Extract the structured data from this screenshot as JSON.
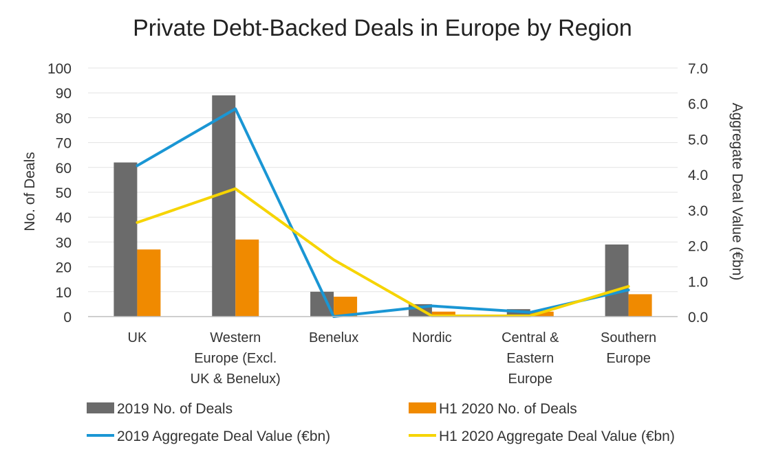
{
  "chart_data": {
    "type": "bar",
    "title": "Private Debt-Backed Deals in Europe by Region",
    "ylabel": "No. of Deals",
    "y2label": "Aggregate Deal Value (€bn)",
    "ylim": [
      0,
      100
    ],
    "y2lim": [
      0,
      7
    ],
    "yticks": [
      "0",
      "10",
      "20",
      "30",
      "40",
      "50",
      "60",
      "70",
      "80",
      "90",
      "100"
    ],
    "y2ticks": [
      "0.0",
      "1.0",
      "2.0",
      "3.0",
      "4.0",
      "5.0",
      "6.0",
      "7.0"
    ],
    "grid": true,
    "legend_position": "bottom",
    "categories": [
      [
        "UK"
      ],
      [
        "Western",
        "Europe (Excl.",
        "UK & Benelux)"
      ],
      [
        "Benelux"
      ],
      [
        "Nordic"
      ],
      [
        "Central &",
        "Eastern",
        "Europe"
      ],
      [
        "Southern",
        "Europe"
      ]
    ],
    "series": [
      {
        "name": "2019 No. of Deals",
        "kind": "bar",
        "axis": "left",
        "color": "#6b6b6b",
        "values": [
          62,
          89,
          10,
          5,
          3,
          29
        ]
      },
      {
        "name": "H1 2020 No. of Deals",
        "kind": "bar",
        "axis": "left",
        "color": "#f08a00",
        "values": [
          27,
          31,
          8,
          2,
          2,
          9
        ]
      },
      {
        "name": "2019 Aggregate Deal Value (€bn)",
        "kind": "line",
        "axis": "right",
        "color": "#1a96d4",
        "values": [
          4.25,
          5.85,
          0.0,
          0.3,
          0.12,
          0.75
        ]
      },
      {
        "name": "H1 2020 Aggregate Deal Value (€bn)",
        "kind": "line",
        "axis": "right",
        "color": "#f6d400",
        "values": [
          2.65,
          3.6,
          1.6,
          0.02,
          0.02,
          0.85
        ]
      }
    ]
  }
}
